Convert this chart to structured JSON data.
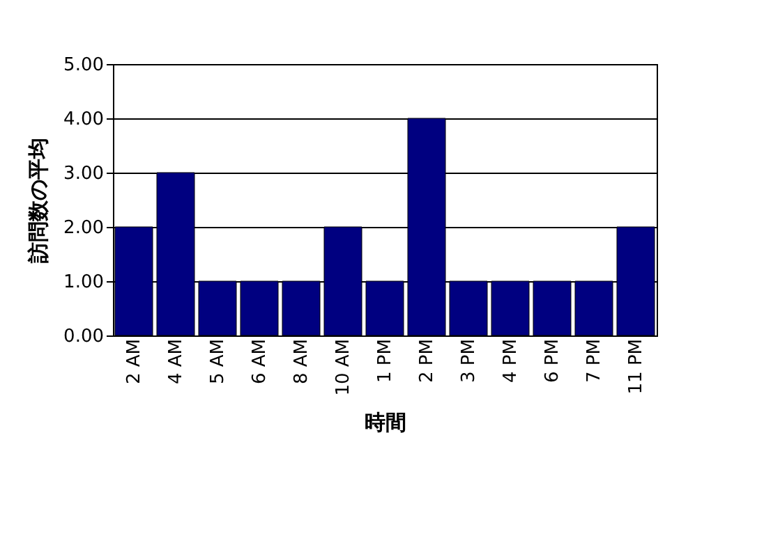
{
  "chart_data": {
    "type": "bar",
    "xlabel": "時間",
    "ylabel": "訪問数の平均",
    "categories": [
      "2 AM",
      "4 AM",
      "5 AM",
      "6 AM",
      "8 AM",
      "10 AM",
      "1 PM",
      "2 PM",
      "3 PM",
      "4 PM",
      "6 PM",
      "7 PM",
      "11 PM"
    ],
    "values": [
      2,
      3,
      1,
      1,
      1,
      2,
      1,
      4,
      1,
      1,
      1,
      1,
      2
    ],
    "color": "#000080",
    "ylim": [
      0,
      5
    ],
    "yticks": [
      {
        "value": 0,
        "label": "0.00"
      },
      {
        "value": 1,
        "label": "1.00"
      },
      {
        "value": 2,
        "label": "2.00"
      },
      {
        "value": 3,
        "label": "3.00"
      },
      {
        "value": 4,
        "label": "4.00"
      },
      {
        "value": 5,
        "label": "5.00"
      }
    ],
    "grid": "y"
  }
}
